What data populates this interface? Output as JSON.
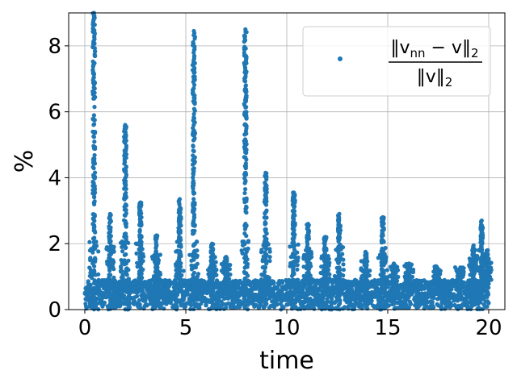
{
  "chart_data": {
    "type": "scatter",
    "xlabel": "time",
    "ylabel": "%",
    "xlim": [
      -0.8,
      20.8
    ],
    "ylim": [
      0,
      9
    ],
    "xticks": [
      0,
      5,
      10,
      15,
      20
    ],
    "yticks": [
      0,
      2,
      4,
      6,
      8
    ],
    "x_tick_labels": [
      "0",
      "5",
      "10",
      "15",
      "20"
    ],
    "y_tick_labels": [
      "0",
      "2",
      "4",
      "6",
      "8"
    ],
    "grid": true,
    "legend_placement": "top-right",
    "series": [
      {
        "name": "‖v_nn − v‖₂ / ‖v‖₂",
        "color": "#1f77b4",
        "time_range": [
          0,
          20
        ],
        "baseline_range": [
          0,
          0.9
        ],
        "spikes": [
          {
            "t": 0.45,
            "peak": 9.0
          },
          {
            "t": 1.25,
            "peak": 2.9
          },
          {
            "t": 2.0,
            "peak": 5.6
          },
          {
            "t": 2.75,
            "peak": 3.25
          },
          {
            "t": 3.55,
            "peak": 2.25
          },
          {
            "t": 4.7,
            "peak": 3.35
          },
          {
            "t": 5.4,
            "peak": 8.45
          },
          {
            "t": 6.3,
            "peak": 2.0
          },
          {
            "t": 7.0,
            "peak": 1.6
          },
          {
            "t": 7.95,
            "peak": 8.5
          },
          {
            "t": 8.95,
            "peak": 4.15
          },
          {
            "t": 10.35,
            "peak": 3.55
          },
          {
            "t": 11.05,
            "peak": 2.6
          },
          {
            "t": 11.9,
            "peak": 2.2
          },
          {
            "t": 12.6,
            "peak": 2.9
          },
          {
            "t": 13.9,
            "peak": 1.75
          },
          {
            "t": 14.75,
            "peak": 2.8
          },
          {
            "t": 15.3,
            "peak": 1.4
          },
          {
            "t": 16.05,
            "peak": 1.4
          },
          {
            "t": 17.4,
            "peak": 1.3
          },
          {
            "t": 18.55,
            "peak": 1.2
          },
          {
            "t": 19.25,
            "peak": 1.95
          },
          {
            "t": 19.65,
            "peak": 2.7
          },
          {
            "t": 19.95,
            "peak": 1.8
          }
        ]
      }
    ],
    "legend": {
      "numerator": "‖v",
      "numerator_sub": "nn",
      "numerator_rest": " − v‖",
      "numerator_norm_sub": "2",
      "denominator": "‖v‖",
      "denominator_sub": "2"
    }
  }
}
